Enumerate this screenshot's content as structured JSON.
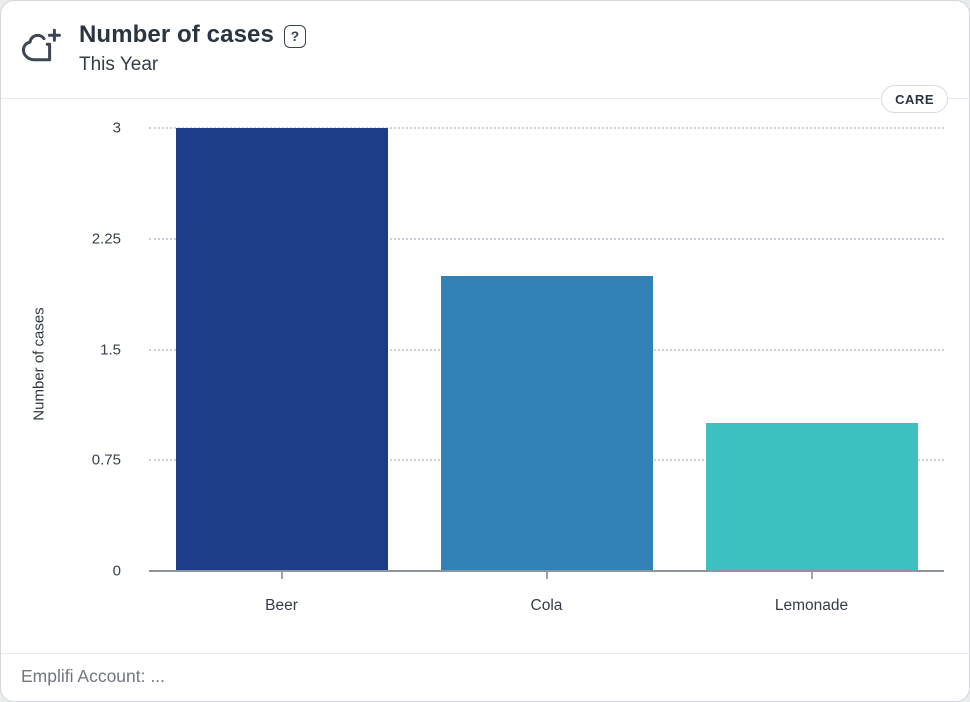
{
  "header": {
    "title": "Number of cases",
    "subtitle": "This Year",
    "help_glyph": "?",
    "badge_label": "CARE"
  },
  "chart_data": {
    "type": "bar",
    "title": "Number of cases",
    "subtitle": "This Year",
    "categories": [
      "Beer",
      "Cola",
      "Lemonade"
    ],
    "values": [
      3,
      2,
      1
    ],
    "bar_colors": [
      "#1e3d87",
      "#3181b7",
      "#3dc0c0"
    ],
    "xlabel": "",
    "ylabel": "Number of cases",
    "ylim": [
      0,
      3
    ],
    "yticks": [
      0,
      0.75,
      1.5,
      2.25,
      3
    ],
    "ytick_labels": [
      "0",
      "0.75",
      "1.5",
      "2.25",
      "3"
    ],
    "grid": "horizontal-dotted",
    "legend": "none",
    "grid_color": "#cbd1d8",
    "axis_color": "#8f939d"
  },
  "footer": {
    "text": "Emplifi Account: ..."
  }
}
